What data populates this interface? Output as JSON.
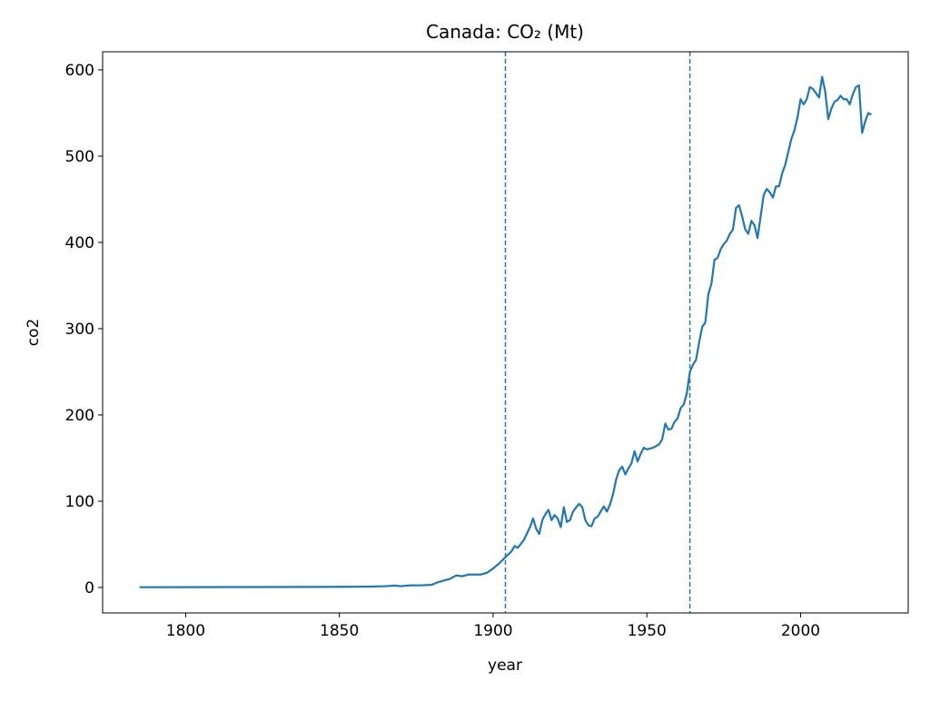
{
  "chart_data": {
    "type": "line",
    "title": "Canada: CO₂ (Mt)",
    "xlabel": "year",
    "ylabel": "co2",
    "x": [
      1785,
      1800,
      1820,
      1840,
      1855,
      1860,
      1865,
      1868,
      1870,
      1873,
      1876,
      1880,
      1882,
      1884,
      1886,
      1888,
      1890,
      1892,
      1894,
      1896,
      1898,
      1900,
      1902,
      1904,
      1906,
      1907,
      1908,
      1910,
      1912,
      1913,
      1914,
      1915,
      1916,
      1917,
      1918,
      1919,
      1920,
      1921,
      1922,
      1923,
      1924,
      1925,
      1926,
      1927,
      1928,
      1929,
      1930,
      1931,
      1932,
      1933,
      1934,
      1935,
      1936,
      1937,
      1938,
      1939,
      1940,
      1941,
      1942,
      1943,
      1944,
      1945,
      1946,
      1947,
      1948,
      1949,
      1950,
      1951,
      1952,
      1953,
      1954,
      1955,
      1956,
      1957,
      1958,
      1959,
      1960,
      1961,
      1962,
      1963,
      1964,
      1965,
      1966,
      1967,
      1968,
      1969,
      1970,
      1971,
      1972,
      1973,
      1974,
      1975,
      1976,
      1977,
      1978,
      1979,
      1980,
      1981,
      1982,
      1983,
      1984,
      1985,
      1986,
      1987,
      1988,
      1989,
      1990,
      1991,
      1992,
      1993,
      1994,
      1995,
      1996,
      1997,
      1998,
      1999,
      2000,
      2001,
      2002,
      2003,
      2004,
      2005,
      2006,
      2007,
      2008,
      2009,
      2010,
      2011,
      2012,
      2013,
      2014,
      2015,
      2016,
      2017,
      2018,
      2019,
      2020,
      2021,
      2022,
      2023
    ],
    "series": [
      {
        "name": "co2",
        "color": "#1f77b4",
        "values": [
          0.3,
          0.4,
          0.5,
          0.6,
          0.8,
          1,
          1.5,
          2.2,
          1.5,
          2.5,
          2.4,
          3,
          6,
          8,
          10,
          14,
          13,
          15,
          15,
          15,
          17,
          22,
          28,
          35,
          42,
          48,
          46,
          55,
          70,
          80,
          68,
          62,
          78,
          85,
          90,
          78,
          84,
          80,
          70,
          93,
          76,
          78,
          88,
          93,
          97,
          93,
          78,
          72,
          71,
          80,
          82,
          88,
          94,
          88,
          96,
          108,
          125,
          136,
          140,
          131,
          138,
          144,
          158,
          146,
          155,
          162,
          160,
          161,
          162,
          164,
          166,
          172,
          190,
          183,
          184,
          192,
          196,
          208,
          212,
          225,
          250,
          258,
          264,
          284,
          302,
          307,
          340,
          352,
          380,
          382,
          392,
          398,
          402,
          410,
          415,
          440,
          443,
          430,
          415,
          410,
          425,
          420,
          405,
          430,
          455,
          462,
          458,
          452,
          465,
          465,
          480,
          490,
          505,
          520,
          530,
          545,
          566,
          560,
          566,
          580,
          578,
          573,
          568,
          592,
          575,
          543,
          555,
          563,
          565,
          570,
          566,
          566,
          560,
          572,
          580,
          582,
          527,
          540,
          550,
          548
        ]
      }
    ],
    "vlines": [
      1904,
      1964
    ],
    "xlim": [
      1773,
      2035
    ],
    "ylim": [
      -29.5,
      621
    ],
    "xticks": [
      1800,
      1850,
      1900,
      1950,
      2000
    ],
    "yticks": [
      0,
      100,
      200,
      300,
      400,
      500,
      600
    ]
  }
}
